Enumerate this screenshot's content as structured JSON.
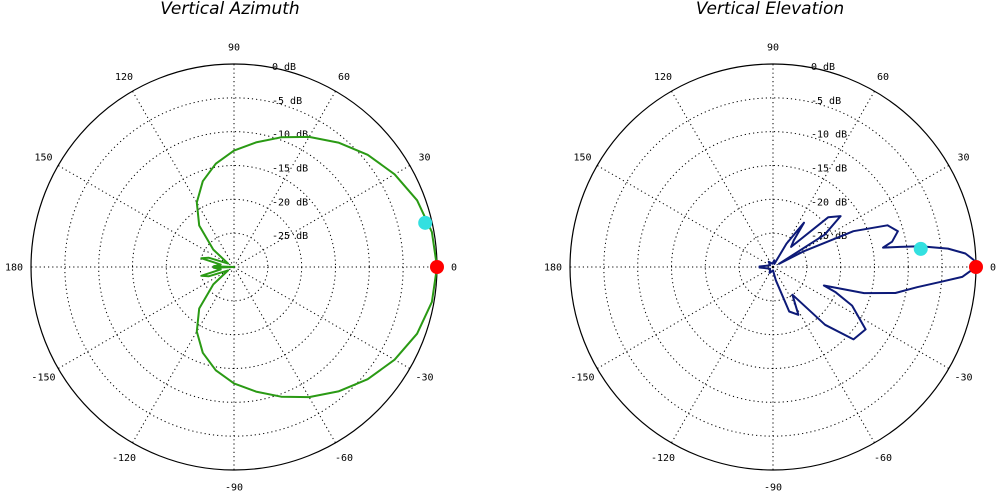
{
  "chart_data": [
    {
      "type": "polar",
      "title": "Vertical Azimuth",
      "angle_ticks": [
        0,
        30,
        60,
        90,
        120,
        150,
        180,
        -150,
        -120,
        -90,
        -60,
        -30
      ],
      "radial_ticks": [
        "0 dB",
        "-5 dB",
        "-10 dB",
        "-15 dB",
        "-20 dB",
        "-25 dB"
      ],
      "radial_range_db": [
        -30,
        0
      ],
      "grid": true,
      "series": [
        {
          "color": "#2a9a14",
          "points_deg_db": [
            [
              0,
              0
            ],
            [
              10,
              -0.3
            ],
            [
              20,
              -1.2
            ],
            [
              30,
              -2.6
            ],
            [
              40,
              -4.2
            ],
            [
              50,
              -6
            ],
            [
              60,
              -7.8
            ],
            [
              70,
              -9.6
            ],
            [
              80,
              -11.3
            ],
            [
              90,
              -12.8
            ],
            [
              100,
              -14.5
            ],
            [
              110,
              -16.5
            ],
            [
              120,
              -19
            ],
            [
              130,
              -22
            ],
            [
              140,
              -26
            ],
            [
              150,
              -29
            ],
            [
              160,
              -26
            ],
            [
              165,
              -25
            ],
            [
              170,
              -28
            ],
            [
              178,
              -27
            ],
            [
              180,
              -30
            ],
            [
              182,
              -27
            ],
            [
              190,
              -28
            ],
            [
              195,
              -25
            ],
            [
              200,
              -26
            ],
            [
              210,
              -29
            ],
            [
              220,
              -26
            ],
            [
              230,
              -22
            ],
            [
              240,
              -19
            ],
            [
              250,
              -16.5
            ],
            [
              260,
              -14.5
            ],
            [
              270,
              -12.8
            ],
            [
              280,
              -11.3
            ],
            [
              290,
              -9.6
            ],
            [
              300,
              -7.8
            ],
            [
              310,
              -6
            ],
            [
              320,
              -4.2
            ],
            [
              330,
              -2.6
            ],
            [
              340,
              -1.2
            ],
            [
              350,
              -0.3
            ],
            [
              360,
              0
            ]
          ]
        }
      ],
      "markers": [
        {
          "angle_deg": 0,
          "db": 0,
          "color": "#ff0000"
        },
        {
          "angle_deg": 13,
          "db": -1,
          "color": "#33e0e0"
        }
      ]
    },
    {
      "type": "polar",
      "title": "Vertical Elevation",
      "angle_ticks": [
        0,
        30,
        60,
        90,
        120,
        150,
        180,
        -150,
        -120,
        -90,
        -60,
        -30
      ],
      "radial_ticks": [
        "0 dB",
        "-5 dB",
        "-10 dB",
        "-15 dB",
        "-20 dB",
        "-25 dB"
      ],
      "radial_range_db": [
        -30,
        0
      ],
      "grid": true,
      "series": [
        {
          "color": "#0d1a78",
          "points_deg_db": [
            [
              0,
              0
            ],
            [
              2,
              -0.3
            ],
            [
              4,
              -1.5
            ],
            [
              6,
              -4
            ],
            [
              8,
              -8
            ],
            [
              9,
              -11
            ],
            [
              10,
              -13.5
            ],
            [
              12,
              -12
            ],
            [
              16,
              -10.8
            ],
            [
              20,
              -12
            ],
            [
              24,
              -17
            ],
            [
              27,
              -25
            ],
            [
              28,
              -29
            ],
            [
              32,
              -21
            ],
            [
              37,
              -17.5
            ],
            [
              42,
              -19
            ],
            [
              48,
              -26
            ],
            [
              52,
              -25
            ],
            [
              55,
              -22
            ],
            [
              60,
              -26
            ],
            [
              66,
              -29.5
            ],
            [
              80,
              -29
            ],
            [
              100,
              -29.5
            ],
            [
              130,
              -29
            ],
            [
              150,
              -29.5
            ],
            [
              170,
              -29
            ],
            [
              178,
              -28
            ],
            [
              182,
              -28
            ],
            [
              190,
              -29
            ],
            [
              210,
              -29.5
            ],
            [
              240,
              -29
            ],
            [
              270,
              -29.5
            ],
            [
              282,
              -28
            ],
            [
              290,
              -23
            ],
            [
              298,
              -22
            ],
            [
              305,
              -25
            ],
            [
              312,
              -18.5
            ],
            [
              318,
              -14
            ],
            [
              326,
              -13.5
            ],
            [
              334,
              -17
            ],
            [
              338,
              -20
            ],
            [
              340,
              -22
            ],
            [
              344,
              -16
            ],
            [
              348,
              -11.5
            ],
            [
              352,
              -8.5
            ],
            [
              355,
              -5
            ],
            [
              357,
              -2
            ],
            [
              360,
              0
            ]
          ]
        }
      ],
      "markers": [
        {
          "angle_deg": 0,
          "db": 0,
          "color": "#ff0000"
        },
        {
          "angle_deg": 7,
          "db": -8,
          "color": "#33e0e0"
        }
      ]
    }
  ]
}
